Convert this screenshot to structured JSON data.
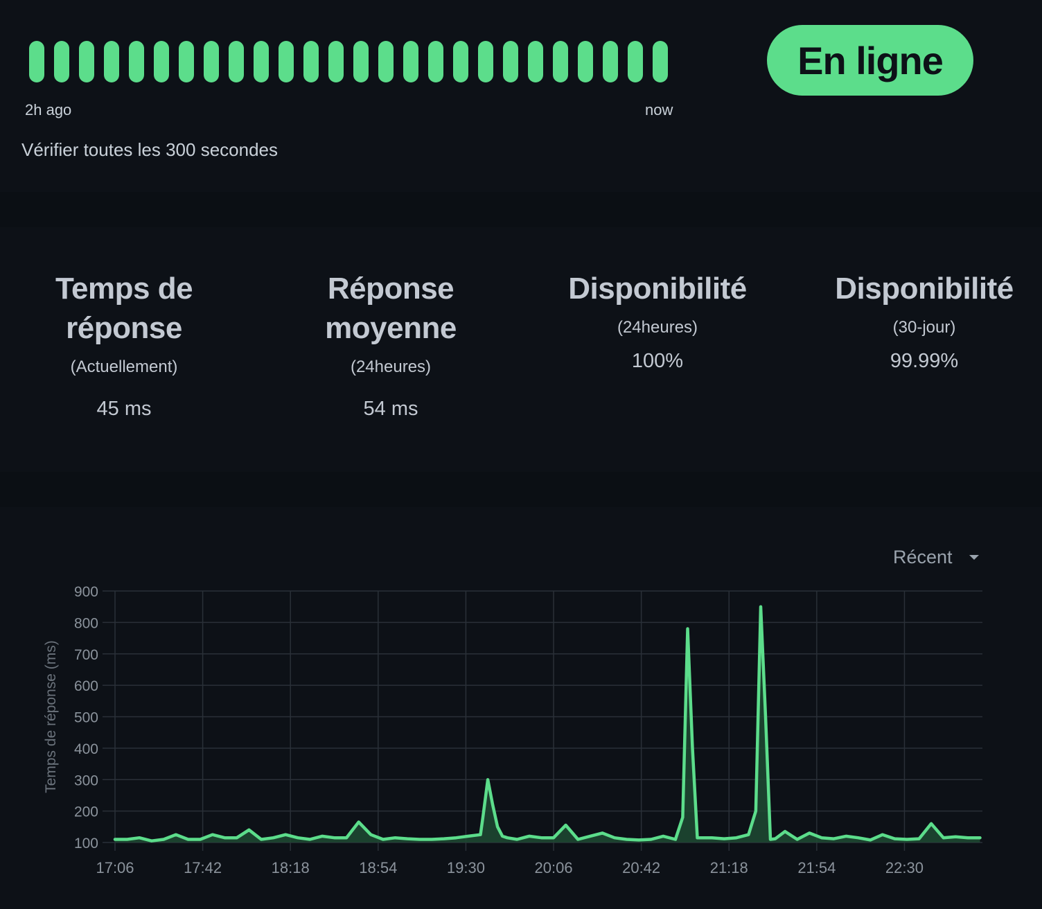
{
  "heartbeat": {
    "count": 26,
    "color": "#5cdd8b",
    "start_label": "2h ago",
    "end_label": "now",
    "interval_text": "Vérifier toutes les 300 secondes"
  },
  "status": {
    "label": "En ligne",
    "color": "#5cdd8b"
  },
  "stats": [
    {
      "title": "Temps de réponse",
      "subtitle": "(Actuellement)",
      "value": "45 ms"
    },
    {
      "title": "Réponse moyenne",
      "subtitle": "(24heures)",
      "value": "54 ms"
    },
    {
      "title": "Disponibilité",
      "subtitle": "(24heures)",
      "value": "100%"
    },
    {
      "title": "Disponibilité",
      "subtitle": "(30-jour)",
      "value": "99.99%"
    }
  ],
  "range_select": {
    "selected": "Récent"
  },
  "chart_data": {
    "type": "area",
    "ylabel": "Temps de réponse (ms)",
    "ylim": [
      100,
      900
    ],
    "y_ticks": [
      100,
      200,
      300,
      400,
      500,
      600,
      700,
      800,
      900
    ],
    "x_ticks": [
      "17:06",
      "17:42",
      "18:18",
      "18:54",
      "19:30",
      "20:06",
      "20:42",
      "21:18",
      "21:54",
      "22:30"
    ],
    "x_range_minutes": [
      0,
      356
    ],
    "grid": true,
    "line_color": "#5cdd8b",
    "fill_color": "#1f4a33",
    "series": [
      {
        "x_minutes": [
          0,
          5,
          10,
          15,
          20,
          25,
          30,
          35,
          40,
          45,
          50,
          55,
          60,
          65,
          70,
          75,
          80,
          85,
          90,
          95,
          100,
          105,
          110,
          115,
          120,
          125,
          130,
          135,
          140,
          145,
          150,
          151,
          153,
          155,
          157,
          159,
          161,
          165,
          170,
          175,
          180,
          185,
          190,
          195,
          200,
          205,
          210,
          215,
          220,
          225,
          230,
          233,
          235,
          237,
          239,
          241,
          245,
          250,
          255,
          260,
          263,
          265,
          267,
          269,
          271,
          275,
          280,
          285,
          290,
          295,
          300,
          305,
          310,
          315,
          320,
          325,
          330,
          335,
          340,
          345,
          350,
          355
        ],
        "values": [
          110,
          110,
          115,
          105,
          110,
          125,
          110,
          110,
          125,
          115,
          115,
          140,
          110,
          115,
          125,
          115,
          110,
          120,
          115,
          115,
          165,
          125,
          110,
          115,
          112,
          110,
          110,
          112,
          115,
          120,
          125,
          180,
          300,
          220,
          150,
          120,
          115,
          110,
          120,
          115,
          115,
          155,
          110,
          120,
          130,
          115,
          110,
          108,
          110,
          120,
          110,
          180,
          780,
          400,
          115,
          115,
          115,
          112,
          115,
          125,
          200,
          850,
          500,
          110,
          112,
          135,
          110,
          130,
          115,
          112,
          120,
          115,
          108,
          125,
          112,
          110,
          112,
          160,
          115,
          118,
          115,
          115
        ]
      }
    ]
  }
}
